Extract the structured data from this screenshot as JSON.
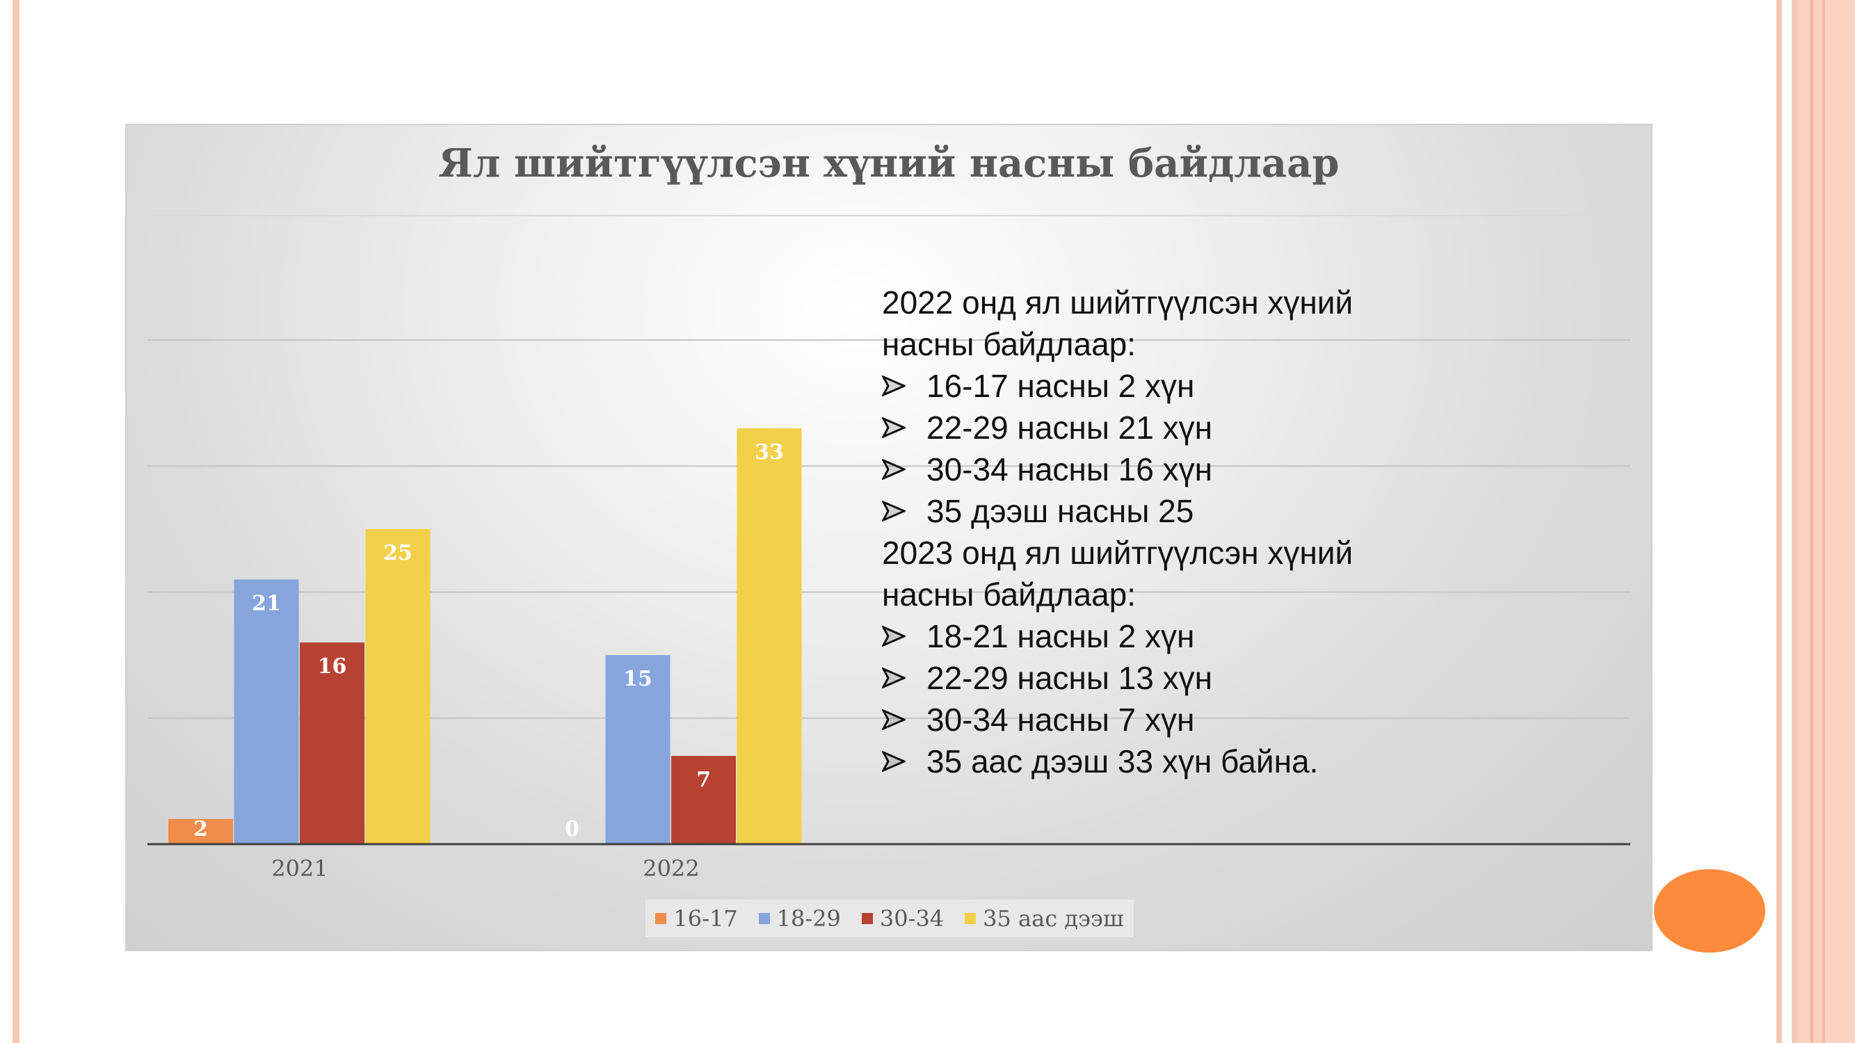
{
  "chart_data": {
    "type": "bar",
    "title": "Ял шийтгүүлсэн хүний насны байдлаар",
    "categories": [
      "2021",
      "2022"
    ],
    "series": [
      {
        "name": "16-17",
        "values": [
          2,
          0
        ],
        "color": "#f08c4a"
      },
      {
        "name": "18-29",
        "values": [
          21,
          15
        ],
        "color": "#86a5dc"
      },
      {
        "name": "30-34",
        "values": [
          16,
          7
        ],
        "color": "#b74232"
      },
      {
        "name": "35 аас дээш",
        "values": [
          25,
          33
        ],
        "color": "#f3d04a"
      }
    ],
    "ylim": [
      0,
      40
    ],
    "grid": true,
    "legend_position": "bottom"
  },
  "notes": {
    "block1": {
      "heading": [
        "2022 онд  ял шийтгүүлсэн хүний",
        "насны байдлаар:"
      ],
      "items": [
        "16-17 насны 2 хүн",
        "22-29 насны 21 хүн",
        "30-34 насны 16 хүн",
        "35 дээш насны 25"
      ]
    },
    "block2": {
      "heading": [
        "2023 онд ял шийтгүүлсэн хүний",
        "насны байдлаар:"
      ],
      "items": [
        "18-21 насны 2 хүн",
        "22-29 насны 13 хүн",
        "30-34 насны 7 хүн",
        "35 аас дээш 33 хүн байна."
      ]
    }
  }
}
